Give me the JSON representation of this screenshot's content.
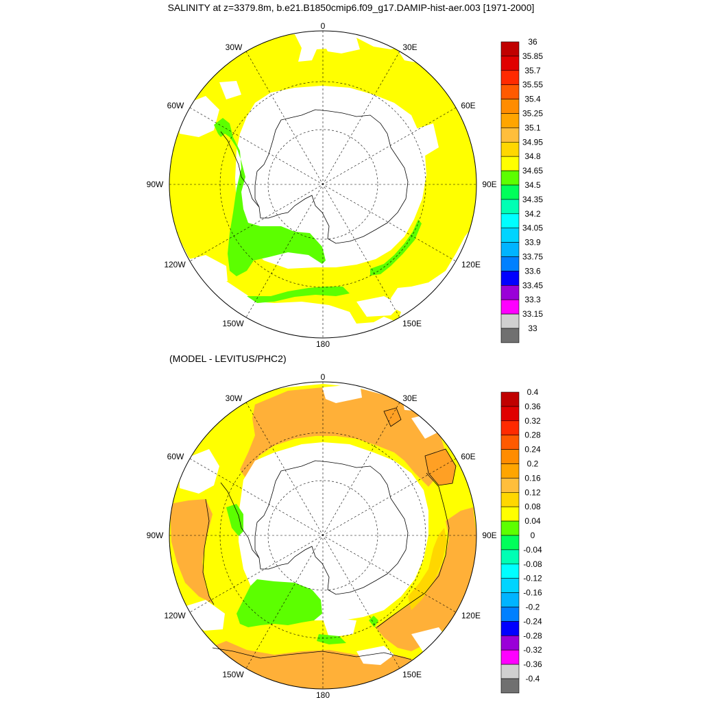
{
  "title": "SALINITY at z=3379.8m, b.e21.B1850cmip6.f09_g17.DAMIP-hist-aer.003 [1971-2000]",
  "subtitle": "(MODEL - LEVITUS/PHC2)",
  "map_labels": {
    "top": "0",
    "lon_30w": "30W",
    "lon_30e": "30E",
    "lon_60w": "60W",
    "lon_60e": "60E",
    "lon_90w": "90W",
    "lon_90e": "90E",
    "lon_120w": "120W",
    "lon_120e": "120E",
    "lon_150w": "150W",
    "lon_150e": "150E",
    "bottom": "180"
  },
  "colorbar_top": {
    "labels": [
      "36",
      "35.85",
      "35.7",
      "35.55",
      "35.4",
      "35.25",
      "35.1",
      "34.95",
      "34.8",
      "34.65",
      "34.5",
      "34.35",
      "34.2",
      "34.05",
      "33.9",
      "33.75",
      "33.6",
      "33.45",
      "33.3",
      "33.15",
      "33"
    ],
    "colors": [
      "#c00000",
      "#e00000",
      "#ff2a00",
      "#ff5a00",
      "#ff8c00",
      "#ffa500",
      "#ffbe3c",
      "#ffd700",
      "#ffff00",
      "#5cff00",
      "#00ff5a",
      "#00ffb4",
      "#00ffff",
      "#00d4ff",
      "#00b4ff",
      "#0080ff",
      "#0000ff",
      "#9a00d8",
      "#ff00ff",
      "#d0d0d0",
      "#707070"
    ]
  },
  "colorbar_bottom": {
    "labels": [
      "0.4",
      "0.36",
      "0.32",
      "0.28",
      "0.24",
      "0.2",
      "0.16",
      "0.12",
      "0.08",
      "0.04",
      "0",
      "-0.04",
      "-0.08",
      "-0.12",
      "-0.16",
      "-0.2",
      "-0.24",
      "-0.28",
      "-0.32",
      "-0.36",
      "-0.4"
    ],
    "colors": [
      "#c00000",
      "#e00000",
      "#ff2a00",
      "#ff5a00",
      "#ff8c00",
      "#ffa500",
      "#ffbe3c",
      "#ffd700",
      "#ffff00",
      "#5cff00",
      "#00ff5a",
      "#00ffb4",
      "#00ffff",
      "#00d4ff",
      "#00b4ff",
      "#0080ff",
      "#0000ff",
      "#9a00d8",
      "#ff00ff",
      "#d0d0d0",
      "#707070"
    ]
  },
  "colors": {
    "yellow": "#ffff00",
    "green": "#5cff00",
    "orange": "#ffb038",
    "orange_dark": "#ffa024",
    "yellow_orange": "#ffd700",
    "blue_sliver": "#0080ff"
  }
}
